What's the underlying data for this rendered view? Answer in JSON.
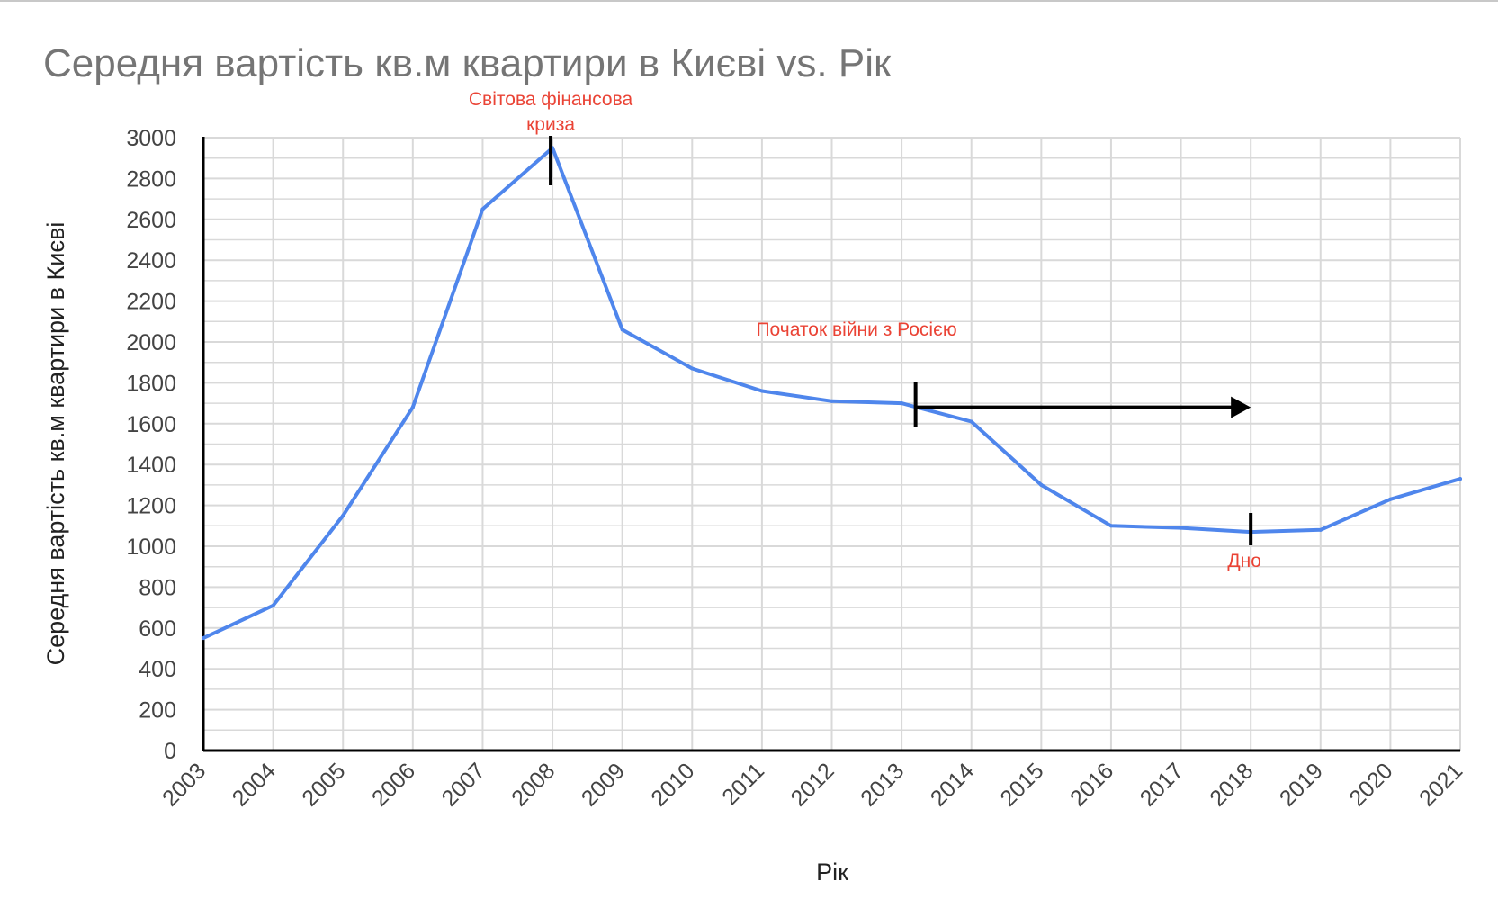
{
  "chart_data": {
    "type": "line",
    "title": "Середня вартість кв.м квартири в Києві vs. Рік",
    "xlabel": "Рік",
    "ylabel": "Середня вартість кв.м квартири в Києві",
    "categories": [
      "2003",
      "2004",
      "2005",
      "2006",
      "2007",
      "2008",
      "2009",
      "2010",
      "2011",
      "2012",
      "2013",
      "2014",
      "2015",
      "2016",
      "2017",
      "2018",
      "2019",
      "2020",
      "2021"
    ],
    "series": [
      {
        "values": [
          550,
          710,
          1150,
          1680,
          2650,
          2950,
          2060,
          1870,
          1760,
          1710,
          1700,
          1610,
          1300,
          1100,
          1090,
          1070,
          1080,
          1230,
          1330
        ],
        "color": "#4f86ec"
      }
    ],
    "ylim": [
      0,
      3000
    ],
    "yticks": [
      0,
      200,
      400,
      600,
      800,
      1000,
      1200,
      1400,
      1600,
      1800,
      2000,
      2200,
      2400,
      2600,
      2800,
      3000
    ],
    "grid": true,
    "legend": "none",
    "annotations": [
      {
        "text_lines": [
          "Світова фінансова",
          "криза"
        ],
        "year": 2008,
        "kind": "marker"
      },
      {
        "text_lines": [
          "Початок війни з Росією"
        ],
        "from_year": 2013.2,
        "to_year": 2018,
        "value": 1680,
        "kind": "arrow"
      },
      {
        "text_lines": [
          "Дно"
        ],
        "year": 2018,
        "kind": "marker"
      }
    ],
    "colors": {
      "grid": "#d9d9d9",
      "axis": "#000000",
      "annotation_text": "#ea4335",
      "annotation_mark": "#000000"
    }
  }
}
